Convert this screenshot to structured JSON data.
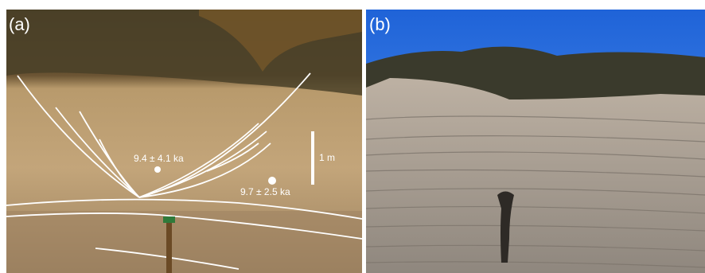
{
  "panels": [
    {
      "label": "(a)",
      "samples": [
        {
          "label": "9.4 ± 4.1 ka"
        },
        {
          "label": "9.7 ± 2.5 ka"
        }
      ],
      "scale_bar": "1 m"
    },
    {
      "label": "(b)"
    }
  ]
}
